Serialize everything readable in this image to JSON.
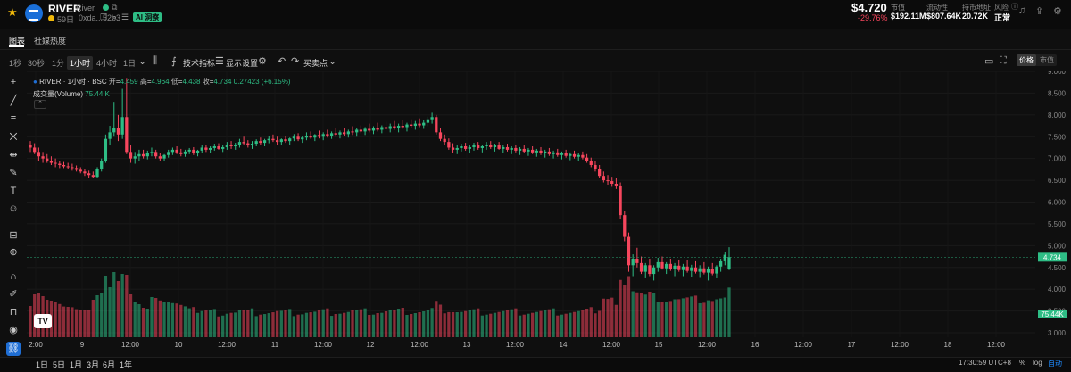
{
  "header": {
    "token_symbol": "RIVER",
    "token_name": "River",
    "age": "59日",
    "address": "0xda...52b3",
    "ai_badge": "AI 洞察",
    "price": "$4.720",
    "change": "-29.76%",
    "stats": [
      {
        "label": "市值",
        "value": "$192.11M"
      },
      {
        "label": "流动性",
        "value": "$807.64K"
      },
      {
        "label": "持币地址",
        "value": "20.72K"
      },
      {
        "label": "风险",
        "value": "正常"
      }
    ]
  },
  "tabs": [
    "图表",
    "社媒热度"
  ],
  "toolbar": {
    "intervals": [
      "1秒",
      "30秒",
      "1分",
      "1小时",
      "4小时",
      "1日"
    ],
    "active_interval": "1小时",
    "indicators": "技术指标",
    "display": "显示设置",
    "trades": "买卖点",
    "toggle": [
      "价格",
      "市值"
    ],
    "active_toggle": "价格"
  },
  "legend": {
    "series": "RIVER · 1小时 · BSC",
    "open_label": "开",
    "open": "4.459",
    "high_label": "高",
    "high": "4.964",
    "low_label": "低",
    "low": "4.438",
    "close_label": "收",
    "close": "4.734",
    "change": "0.27423 (+6.15%)",
    "volume_label": "成交量(Volume)",
    "volume": "75.44 K"
  },
  "bottom": {
    "ranges": [
      "1日",
      "5日",
      "1月",
      "3月",
      "6月",
      "1年"
    ],
    "clock": "17:30:59 UTC+8",
    "options": [
      "%",
      "log",
      "自动"
    ]
  },
  "colors": {
    "up": "#2ebd85",
    "down": "#f6465d",
    "accent": "#1f8cff"
  },
  "chart_data": {
    "type": "candlestick",
    "interval": "1h",
    "y_axis": {
      "min": 3.0,
      "max": 9.0,
      "ticks": [
        3.0,
        3.5,
        4.0,
        4.5,
        5.0,
        5.5,
        6.0,
        6.5,
        7.0,
        7.5,
        8.0,
        8.5,
        9.0
      ],
      "tick_labels": [
        "3.000",
        "3.500",
        "4.000",
        "4.500",
        "5.000",
        "5.500",
        "6.000",
        "6.500",
        "7.000",
        "7.500",
        "8.000",
        "8.500",
        "9.000"
      ]
    },
    "x_axis": {
      "tick_labels": [
        "2:00",
        "9",
        "12:00",
        "10",
        "12:00",
        "11",
        "12:00",
        "12",
        "12:00",
        "13",
        "12:00",
        "14",
        "12:00",
        "15",
        "12:00",
        "16",
        "12:00",
        "17",
        "12:00",
        "18",
        "12:00"
      ]
    },
    "last_price": 4.734,
    "last_volume": "75.44K",
    "candles_start_hour": 0,
    "candles": [
      [
        7.3,
        7.4,
        7.15,
        7.25
      ],
      [
        7.25,
        7.35,
        7.1,
        7.15
      ],
      [
        7.15,
        7.25,
        6.95,
        7.05
      ],
      [
        7.05,
        7.15,
        6.9,
        7.0
      ],
      [
        7.0,
        7.1,
        6.9,
        6.95
      ],
      [
        6.95,
        7.05,
        6.85,
        6.9
      ],
      [
        6.9,
        7.0,
        6.8,
        6.88
      ],
      [
        6.88,
        6.95,
        6.78,
        6.85
      ],
      [
        6.85,
        6.92,
        6.78,
        6.82
      ],
      [
        6.82,
        6.9,
        6.75,
        6.8
      ],
      [
        6.8,
        6.88,
        6.72,
        6.78
      ],
      [
        6.78,
        6.84,
        6.7,
        6.74
      ],
      [
        6.74,
        6.8,
        6.66,
        6.7
      ],
      [
        6.7,
        6.76,
        6.6,
        6.66
      ],
      [
        6.66,
        6.72,
        6.55,
        6.62
      ],
      [
        6.62,
        6.7,
        6.55,
        6.58
      ],
      [
        6.58,
        6.8,
        6.55,
        6.75
      ],
      [
        6.75,
        7.0,
        6.7,
        6.95
      ],
      [
        6.95,
        7.55,
        6.9,
        7.45
      ],
      [
        7.45,
        7.75,
        7.3,
        7.6
      ],
      [
        7.6,
        8.3,
        7.5,
        7.7
      ],
      [
        7.7,
        8.0,
        7.4,
        7.55
      ],
      [
        7.55,
        8.6,
        7.45,
        7.95
      ],
      [
        7.95,
        8.85,
        7.1,
        7.15
      ],
      [
        7.15,
        7.3,
        6.9,
        7.0
      ],
      [
        7.0,
        7.15,
        6.88,
        7.05
      ],
      [
        7.05,
        7.2,
        6.95,
        7.1
      ],
      [
        7.1,
        7.2,
        7.0,
        7.05
      ],
      [
        7.05,
        7.18,
        6.98,
        7.12
      ],
      [
        7.12,
        7.25,
        7.05,
        7.15
      ],
      [
        7.15,
        7.2,
        7.0,
        7.05
      ],
      [
        7.05,
        7.12,
        6.95,
        7.0
      ],
      [
        7.0,
        7.1,
        6.95,
        7.08
      ],
      [
        7.08,
        7.2,
        7.02,
        7.15
      ],
      [
        7.15,
        7.25,
        7.08,
        7.2
      ],
      [
        7.2,
        7.28,
        7.1,
        7.14
      ],
      [
        7.14,
        7.22,
        7.05,
        7.1
      ],
      [
        7.1,
        7.2,
        7.04,
        7.16
      ],
      [
        7.16,
        7.24,
        7.1,
        7.2
      ],
      [
        7.2,
        7.26,
        7.08,
        7.12
      ],
      [
        7.12,
        7.2,
        7.05,
        7.18
      ],
      [
        7.18,
        7.3,
        7.12,
        7.25
      ],
      [
        7.25,
        7.32,
        7.15,
        7.2
      ],
      [
        7.2,
        7.28,
        7.12,
        7.24
      ],
      [
        7.24,
        7.34,
        7.18,
        7.28
      ],
      [
        7.28,
        7.35,
        7.2,
        7.22
      ],
      [
        7.22,
        7.3,
        7.15,
        7.26
      ],
      [
        7.26,
        7.38,
        7.2,
        7.32
      ],
      [
        7.32,
        7.4,
        7.22,
        7.28
      ],
      [
        7.28,
        7.36,
        7.2,
        7.3
      ],
      [
        7.3,
        7.45,
        7.25,
        7.38
      ],
      [
        7.38,
        7.5,
        7.3,
        7.35
      ],
      [
        7.35,
        7.42,
        7.25,
        7.3
      ],
      [
        7.3,
        7.4,
        7.22,
        7.34
      ],
      [
        7.34,
        7.44,
        7.28,
        7.4
      ],
      [
        7.4,
        7.48,
        7.3,
        7.36
      ],
      [
        7.36,
        7.45,
        7.28,
        7.42
      ],
      [
        7.42,
        7.52,
        7.35,
        7.45
      ],
      [
        7.45,
        7.55,
        7.38,
        7.42
      ],
      [
        7.42,
        7.5,
        7.32,
        7.38
      ],
      [
        7.38,
        7.46,
        7.3,
        7.44
      ],
      [
        7.44,
        7.52,
        7.36,
        7.4
      ],
      [
        7.4,
        7.48,
        7.32,
        7.46
      ],
      [
        7.46,
        7.56,
        7.4,
        7.5
      ],
      [
        7.5,
        7.58,
        7.4,
        7.44
      ],
      [
        7.44,
        7.52,
        7.36,
        7.48
      ],
      [
        7.48,
        7.6,
        7.42,
        7.52
      ],
      [
        7.52,
        7.62,
        7.45,
        7.48
      ],
      [
        7.48,
        7.56,
        7.4,
        7.54
      ],
      [
        7.54,
        7.64,
        7.46,
        7.5
      ],
      [
        7.5,
        7.6,
        7.42,
        7.56
      ],
      [
        7.56,
        7.66,
        7.48,
        7.52
      ],
      [
        7.52,
        7.62,
        7.45,
        7.58
      ],
      [
        7.58,
        7.7,
        7.5,
        7.55
      ],
      [
        7.55,
        7.64,
        7.46,
        7.6
      ],
      [
        7.6,
        7.7,
        7.52,
        7.56
      ],
      [
        7.56,
        7.66,
        7.48,
        7.62
      ],
      [
        7.62,
        7.74,
        7.54,
        7.6
      ],
      [
        7.6,
        7.7,
        7.5,
        7.66
      ],
      [
        7.66,
        7.76,
        7.58,
        7.62
      ],
      [
        7.62,
        7.72,
        7.54,
        7.68
      ],
      [
        7.68,
        7.8,
        7.6,
        7.64
      ],
      [
        7.64,
        7.74,
        7.56,
        7.7
      ],
      [
        7.7,
        7.82,
        7.62,
        7.66
      ],
      [
        7.66,
        7.76,
        7.58,
        7.72
      ],
      [
        7.72,
        7.84,
        7.64,
        7.68
      ],
      [
        7.68,
        7.8,
        7.6,
        7.74
      ],
      [
        7.74,
        7.86,
        7.66,
        7.7
      ],
      [
        7.7,
        7.8,
        7.6,
        7.75
      ],
      [
        7.75,
        7.88,
        7.68,
        7.72
      ],
      [
        7.72,
        7.82,
        7.62,
        7.78
      ],
      [
        7.78,
        7.9,
        7.7,
        7.75
      ],
      [
        7.75,
        7.86,
        7.66,
        7.8
      ],
      [
        7.8,
        7.92,
        7.72,
        7.76
      ],
      [
        7.76,
        7.88,
        7.68,
        7.82
      ],
      [
        7.82,
        7.96,
        7.74,
        7.9
      ],
      [
        7.9,
        8.05,
        7.8,
        7.95
      ],
      [
        7.95,
        8.0,
        7.55,
        7.6
      ],
      [
        7.6,
        7.7,
        7.4,
        7.45
      ],
      [
        7.45,
        7.55,
        7.3,
        7.38
      ],
      [
        7.38,
        7.46,
        7.2,
        7.25
      ],
      [
        7.25,
        7.35,
        7.12,
        7.2
      ],
      [
        7.2,
        7.3,
        7.1,
        7.24
      ],
      [
        7.24,
        7.34,
        7.16,
        7.28
      ],
      [
        7.28,
        7.36,
        7.18,
        7.22
      ],
      [
        7.22,
        7.3,
        7.12,
        7.26
      ],
      [
        7.26,
        7.36,
        7.18,
        7.3
      ],
      [
        7.3,
        7.38,
        7.2,
        7.24
      ],
      [
        7.24,
        7.32,
        7.14,
        7.28
      ],
      [
        7.28,
        7.38,
        7.2,
        7.32
      ],
      [
        7.32,
        7.4,
        7.22,
        7.26
      ],
      [
        7.26,
        7.34,
        7.16,
        7.3
      ],
      [
        7.3,
        7.38,
        7.2,
        7.22
      ],
      [
        7.22,
        7.3,
        7.12,
        7.26
      ],
      [
        7.26,
        7.34,
        7.16,
        7.2
      ],
      [
        7.2,
        7.28,
        7.1,
        7.24
      ],
      [
        7.24,
        7.32,
        7.14,
        7.18
      ],
      [
        7.18,
        7.26,
        7.08,
        7.22
      ],
      [
        7.22,
        7.3,
        7.12,
        7.16
      ],
      [
        7.16,
        7.24,
        7.06,
        7.2
      ],
      [
        7.2,
        7.28,
        7.1,
        7.14
      ],
      [
        7.14,
        7.22,
        7.04,
        7.18
      ],
      [
        7.18,
        7.26,
        7.08,
        7.12
      ],
      [
        7.12,
        7.2,
        7.02,
        7.16
      ],
      [
        7.16,
        7.24,
        7.06,
        7.1
      ],
      [
        7.1,
        7.18,
        7.0,
        7.14
      ],
      [
        7.14,
        7.22,
        7.04,
        7.08
      ],
      [
        7.08,
        7.16,
        6.98,
        7.12
      ],
      [
        7.12,
        7.2,
        7.02,
        7.06
      ],
      [
        7.06,
        7.14,
        6.96,
        7.1
      ],
      [
        7.1,
        7.18,
        7.0,
        7.04
      ],
      [
        7.04,
        7.12,
        6.94,
        7.08
      ],
      [
        7.08,
        7.16,
        6.98,
        7.02
      ],
      [
        7.02,
        7.1,
        6.9,
        6.95
      ],
      [
        6.95,
        7.02,
        6.8,
        6.85
      ],
      [
        6.85,
        6.95,
        6.7,
        6.75
      ],
      [
        6.75,
        6.85,
        6.55,
        6.6
      ],
      [
        6.6,
        6.7,
        6.45,
        6.5
      ],
      [
        6.5,
        6.62,
        6.4,
        6.48
      ],
      [
        6.48,
        6.58,
        6.35,
        6.42
      ],
      [
        6.42,
        6.55,
        6.3,
        6.38
      ],
      [
        6.38,
        6.45,
        5.6,
        5.7
      ],
      [
        5.7,
        5.8,
        5.1,
        5.2
      ],
      [
        5.2,
        5.3,
        4.4,
        4.55
      ],
      [
        4.55,
        4.8,
        4.3,
        4.7
      ],
      [
        4.7,
        4.95,
        4.5,
        4.6
      ],
      [
        4.6,
        4.75,
        4.35,
        4.4
      ],
      [
        4.4,
        4.6,
        4.25,
        4.55
      ],
      [
        4.55,
        4.7,
        4.3,
        4.35
      ],
      [
        4.35,
        4.55,
        4.2,
        4.5
      ],
      [
        4.5,
        4.72,
        4.4,
        4.62
      ],
      [
        4.62,
        4.75,
        4.45,
        4.48
      ],
      [
        4.48,
        4.62,
        4.35,
        4.58
      ],
      [
        4.58,
        4.7,
        4.42,
        4.46
      ],
      [
        4.46,
        4.6,
        4.3,
        4.54
      ],
      [
        4.54,
        4.68,
        4.4,
        4.44
      ],
      [
        4.44,
        4.58,
        4.3,
        4.52
      ],
      [
        4.52,
        4.66,
        4.38,
        4.42
      ],
      [
        4.42,
        4.56,
        4.28,
        4.5
      ],
      [
        4.5,
        4.64,
        4.36,
        4.4
      ],
      [
        4.4,
        4.55,
        4.26,
        4.48
      ],
      [
        4.48,
        4.62,
        4.34,
        4.38
      ],
      [
        4.38,
        4.52,
        4.2,
        4.46
      ],
      [
        4.46,
        4.6,
        4.32,
        4.36
      ],
      [
        4.36,
        4.55,
        4.25,
        4.52
      ],
      [
        4.52,
        4.7,
        4.4,
        4.64
      ],
      [
        4.64,
        4.85,
        4.55,
        4.79
      ],
      [
        4.459,
        4.964,
        4.438,
        4.734
      ]
    ],
    "volumes_note": "volume bars share candle colors; last bar 75.44K"
  }
}
